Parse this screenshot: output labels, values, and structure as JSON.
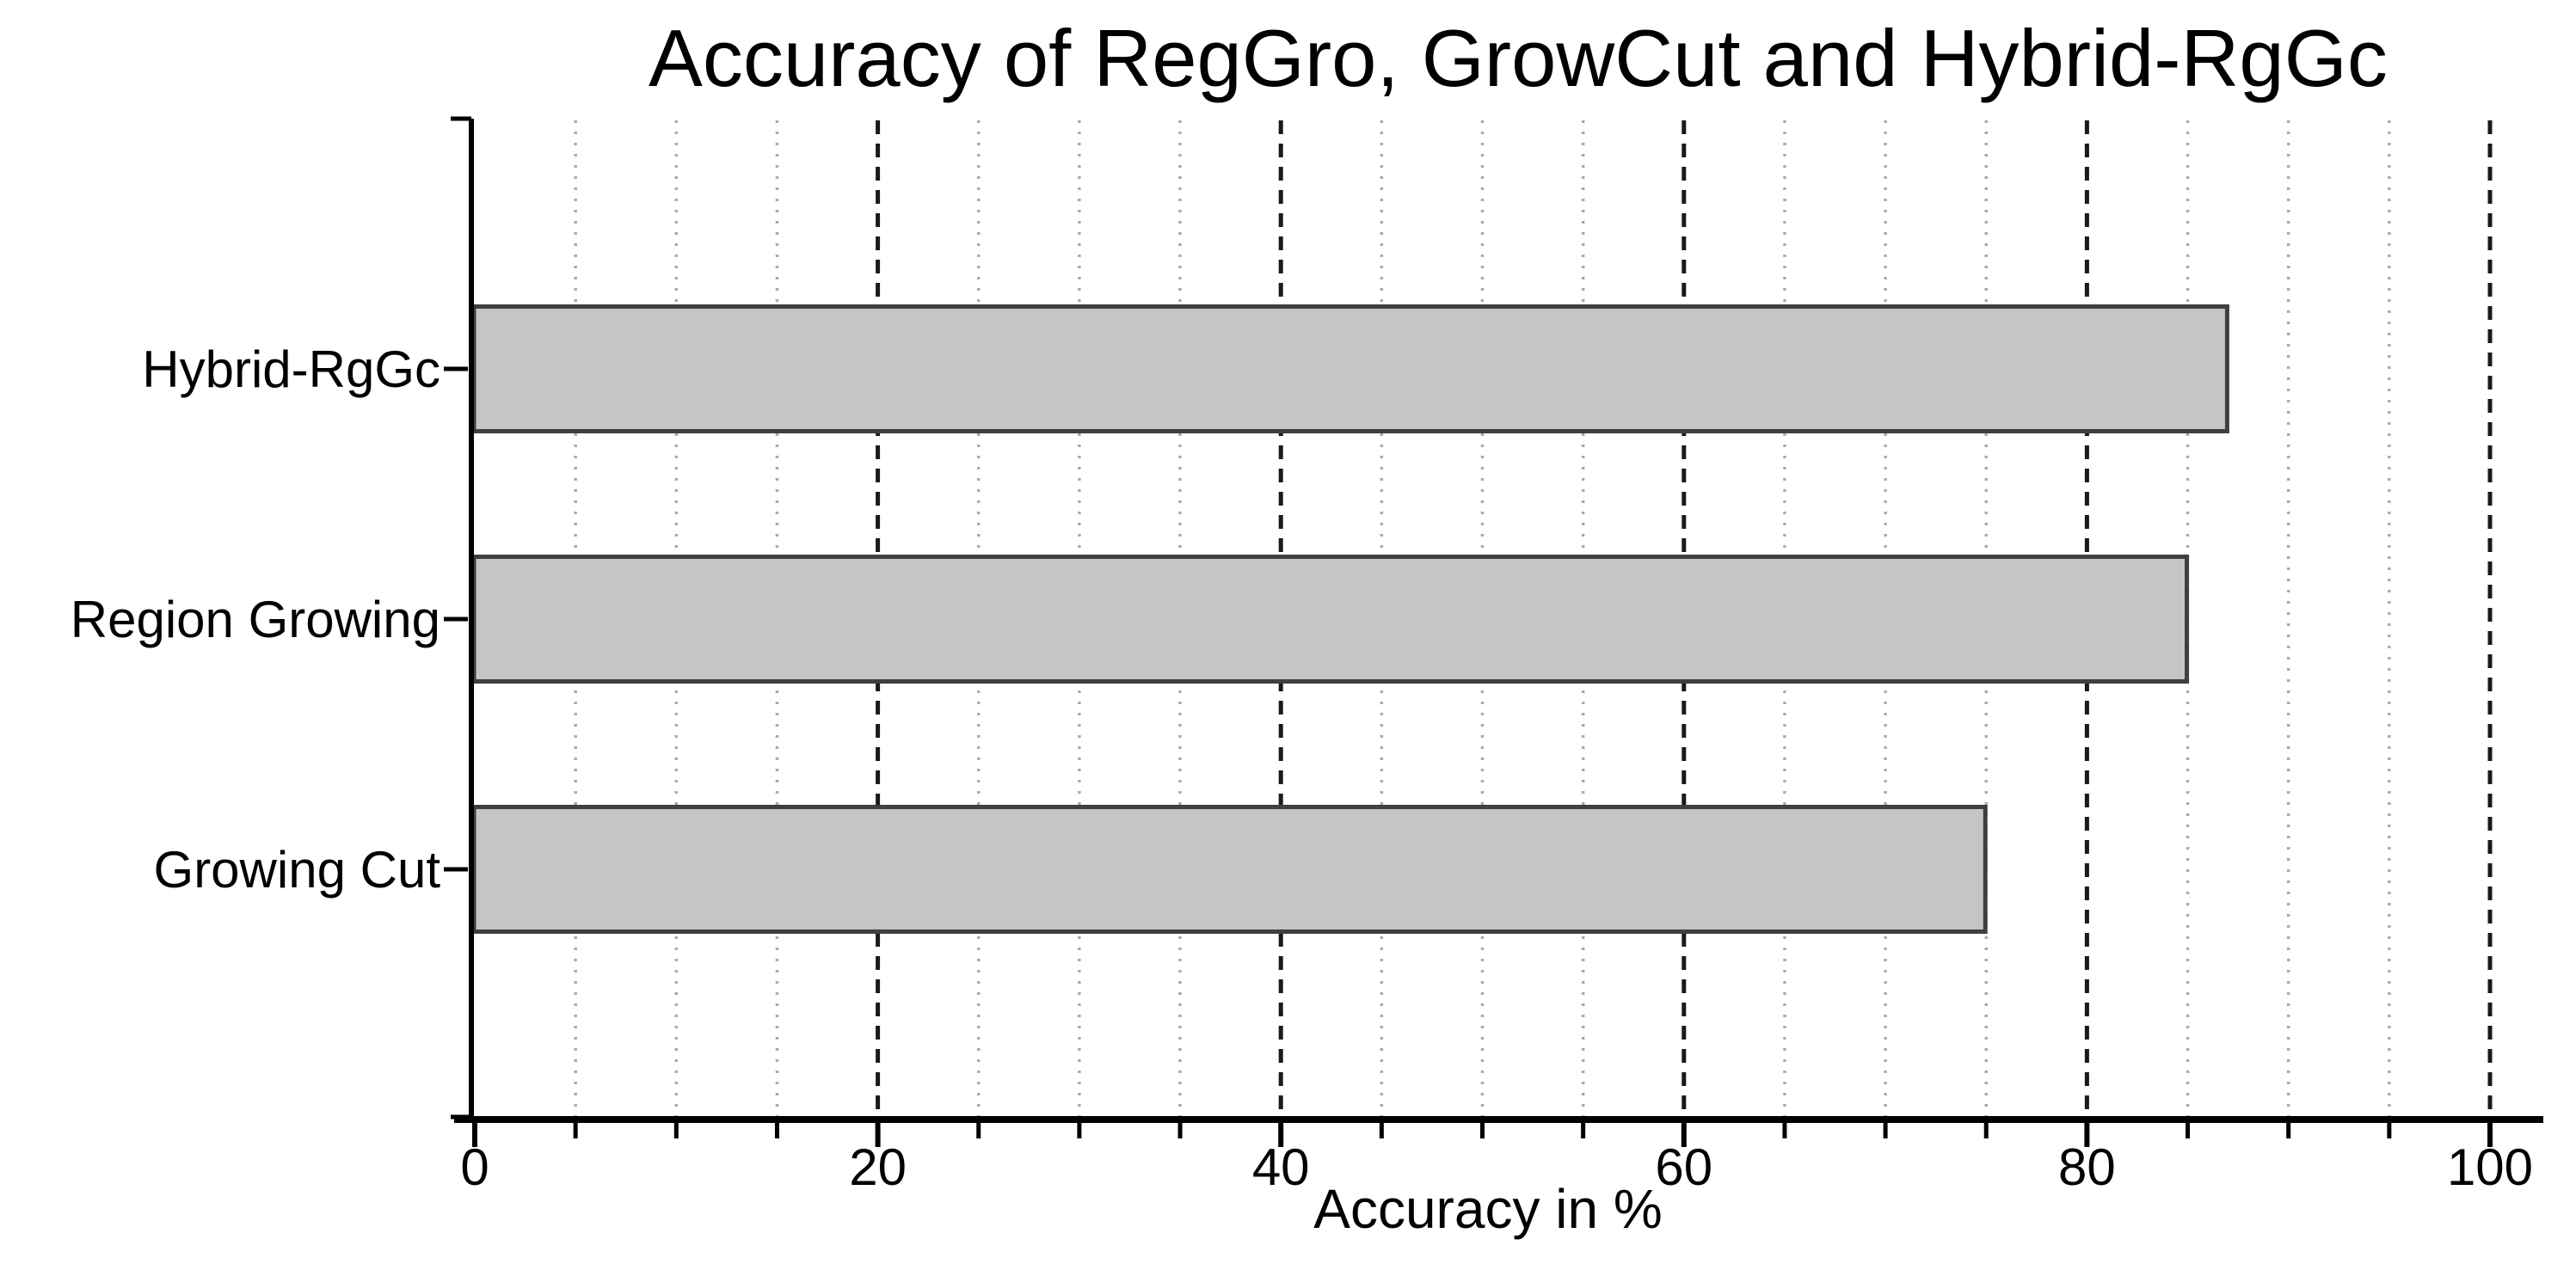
{
  "chart_data": {
    "type": "bar",
    "orientation": "horizontal",
    "title": "Accuracy of RegGro, GrowCut and Hybrid-RgGc",
    "xlabel": "Accuracy in %",
    "ylabel": "",
    "categories": [
      "Hybrid-RgGc",
      "Region Growing",
      "Growing Cut"
    ],
    "values": [
      87,
      85,
      75
    ],
    "xlim": [
      0,
      100
    ],
    "x_major_ticks": [
      0,
      20,
      40,
      60,
      80,
      100
    ],
    "x_tick_labels": [
      "0",
      "20",
      "40",
      "60",
      "80",
      "100"
    ],
    "x_minor_tick_step": 5,
    "legend": "none",
    "grid": {
      "major_style": "dashed",
      "major_color": "#1a1a1a",
      "minor_style": "dotted",
      "minor_color": "#aaaaaa"
    },
    "colors": {
      "bar_fill": "#c5c5c5",
      "bar_border": "#3f3f3f",
      "axis": "#000000",
      "text": "#000000",
      "background": "#ffffff"
    }
  }
}
